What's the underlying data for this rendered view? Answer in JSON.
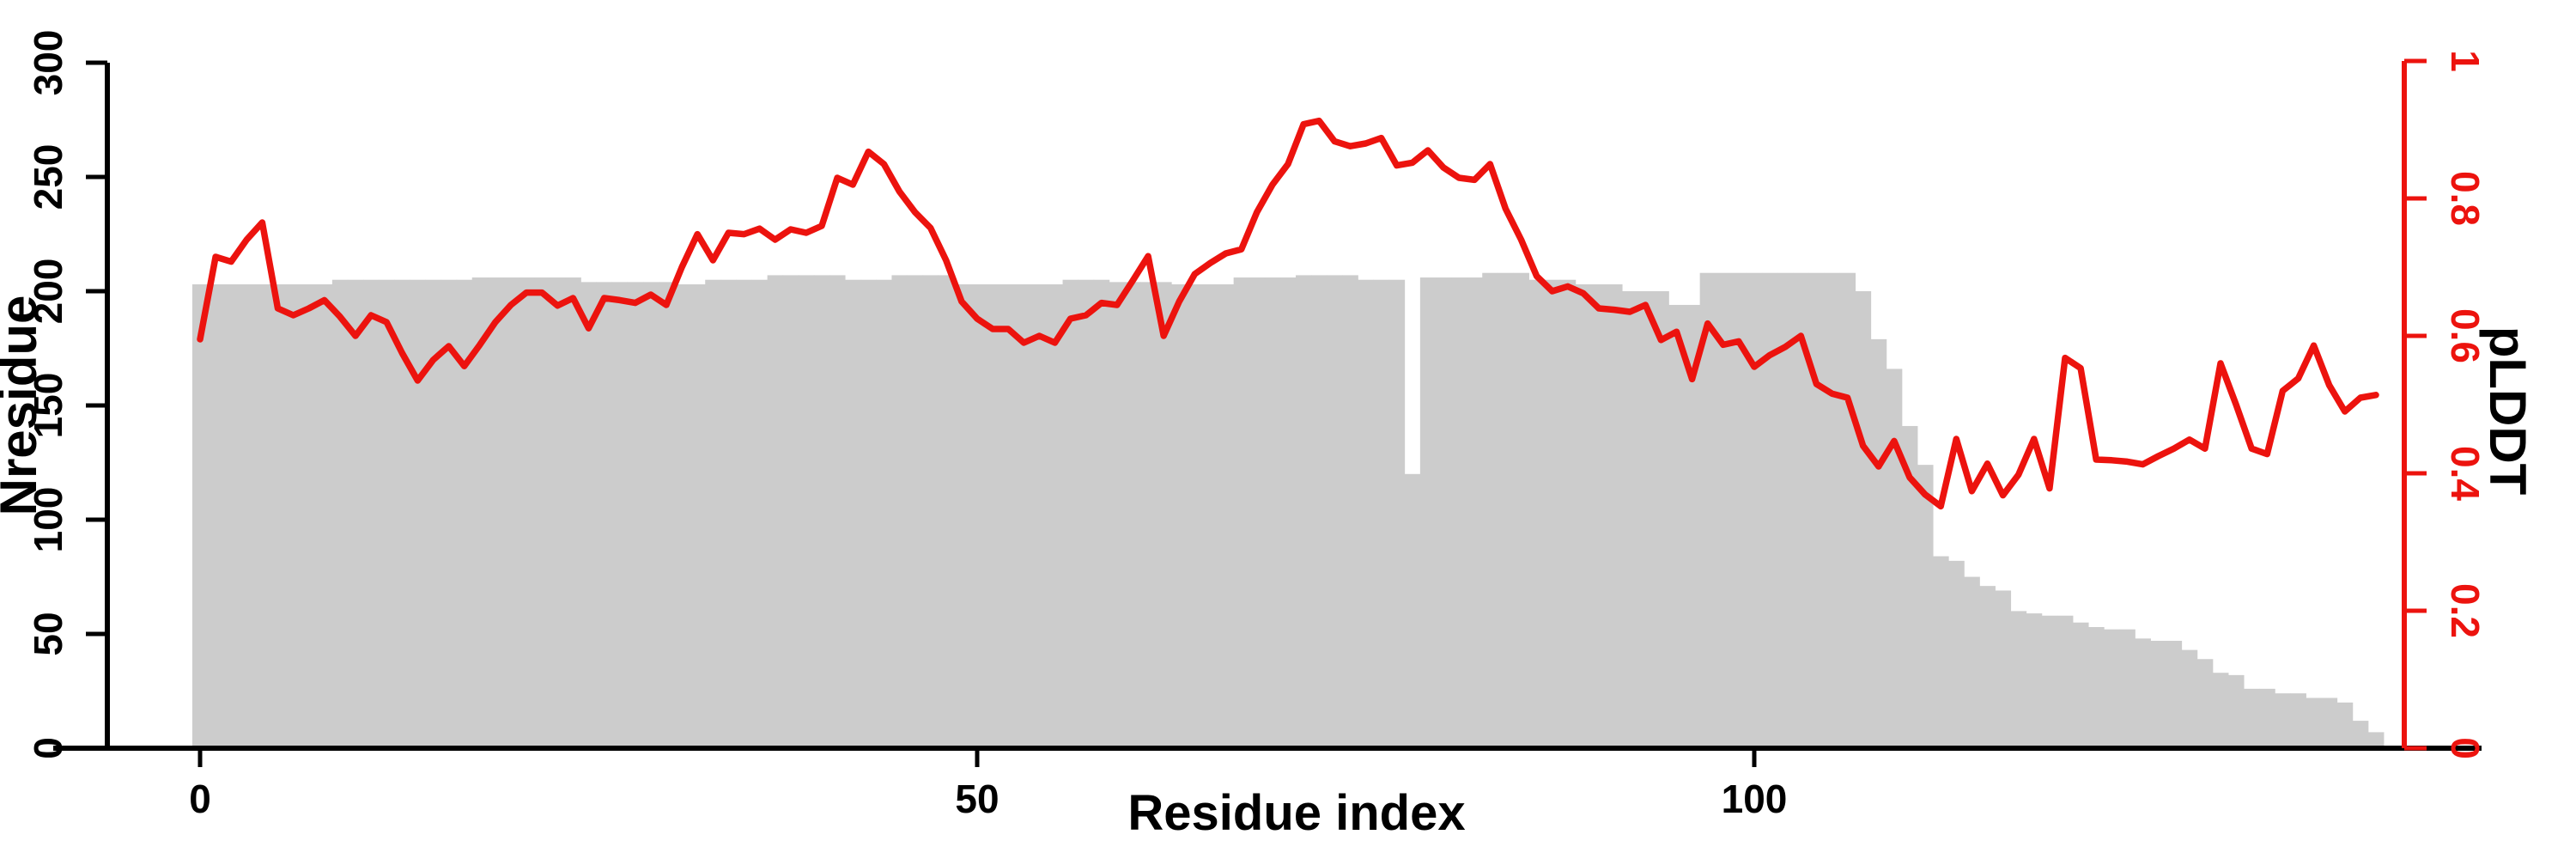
{
  "figure": {
    "xlabel": "Residue index",
    "x_axis": {
      "tick_labels": [
        "0",
        "50",
        "100"
      ],
      "tick_values": [
        0,
        50,
        100
      ]
    },
    "left_axis": {
      "label": "Nresidue",
      "tick_labels": [
        "0",
        "50",
        "100",
        "150",
        "200",
        "250",
        "300"
      ],
      "tick_values": [
        0,
        50,
        100,
        150,
        200,
        250,
        300
      ],
      "range": [
        0,
        300
      ],
      "color": "#000000"
    },
    "right_axis": {
      "label": "pLDDT",
      "tick_labels": [
        "0",
        "0.2",
        "0.4",
        "0.6",
        "0.8",
        "1"
      ],
      "tick_values": [
        0,
        0.2,
        0.4,
        0.6,
        0.8,
        1
      ],
      "range": [
        0,
        1
      ],
      "color": "#ec130e"
    }
  },
  "chart_data": {
    "type": "bar+line",
    "title": "",
    "xlabel": "Residue index",
    "ylabel_left": "Nresidue",
    "ylabel_right": "pLDDT",
    "x_start": 0,
    "x_step": 1,
    "xlim": [
      0,
      140
    ],
    "ylim_left": [
      0,
      300
    ],
    "ylim_right": [
      0,
      1
    ],
    "grid": false,
    "legend_position": "none",
    "bar_color": "#cccccc",
    "line_color": "#ec130e",
    "series": [
      {
        "name": "Nresidue",
        "type": "bar",
        "axis": "left",
        "color": "#cccccc",
        "values": [
          203,
          203,
          203,
          203,
          203,
          203,
          203,
          203,
          203,
          205,
          205,
          205,
          205,
          205,
          205,
          205,
          205,
          205,
          206,
          206,
          206,
          206,
          206,
          206,
          206,
          204,
          204,
          204,
          204,
          204,
          204,
          203,
          203,
          205,
          205,
          205,
          205,
          207,
          207,
          207,
          207,
          207,
          205,
          205,
          205,
          207,
          207,
          207,
          207,
          203,
          203,
          203,
          203,
          203,
          203,
          203,
          205,
          205,
          205,
          204,
          204,
          204,
          204,
          203,
          203,
          203,
          203,
          206,
          206,
          206,
          206,
          207,
          207,
          207,
          207,
          205,
          205,
          205,
          120,
          206,
          206,
          206,
          206,
          208,
          208,
          208,
          205,
          205,
          205,
          203,
          203,
          203,
          200,
          200,
          200,
          194,
          194,
          208,
          208,
          208,
          208,
          208,
          208,
          208,
          208,
          208,
          208,
          200,
          179,
          166,
          141,
          124,
          84,
          82,
          75,
          71,
          69,
          60,
          59,
          58,
          58,
          55,
          53,
          52,
          52,
          48,
          47,
          47,
          43,
          39,
          33,
          32,
          26,
          26,
          24,
          24,
          22,
          22,
          20,
          12,
          7
        ]
      },
      {
        "name": "pLDDT",
        "type": "line",
        "axis": "right",
        "color": "#ec130e",
        "values": [
          0.595,
          0.715,
          0.708,
          0.74,
          0.765,
          0.64,
          0.63,
          0.64,
          0.652,
          0.628,
          0.6,
          0.63,
          0.62,
          0.575,
          0.535,
          0.565,
          0.585,
          0.556,
          0.587,
          0.62,
          0.645,
          0.663,
          0.663,
          0.644,
          0.655,
          0.611,
          0.655,
          0.652,
          0.648,
          0.66,
          0.645,
          0.7,
          0.748,
          0.71,
          0.75,
          0.748,
          0.756,
          0.74,
          0.755,
          0.75,
          0.76,
          0.83,
          0.82,
          0.868,
          0.85,
          0.81,
          0.78,
          0.757,
          0.71,
          0.65,
          0.625,
          0.61,
          0.61,
          0.59,
          0.6,
          0.59,
          0.625,
          0.63,
          0.648,
          0.645,
          0.68,
          0.716,
          0.6,
          0.65,
          0.69,
          0.706,
          0.72,
          0.726,
          0.78,
          0.82,
          0.85,
          0.908,
          0.913,
          0.883,
          0.876,
          0.88,
          0.888,
          0.848,
          0.852,
          0.87,
          0.845,
          0.83,
          0.827,
          0.85,
          0.785,
          0.74,
          0.687,
          0.665,
          0.672,
          0.662,
          0.64,
          0.638,
          0.635,
          0.645,
          0.594,
          0.606,
          0.537,
          0.618,
          0.587,
          0.592,
          0.555,
          0.572,
          0.584,
          0.6,
          0.53,
          0.516,
          0.51,
          0.44,
          0.41,
          0.447,
          0.394,
          0.369,
          0.352,
          0.45,
          0.374,
          0.414,
          0.368,
          0.398,
          0.45,
          0.378,
          0.568,
          0.553,
          0.42,
          0.419,
          0.417,
          0.413,
          0.425,
          0.436,
          0.449,
          0.436,
          0.56,
          0.5,
          0.436,
          0.428,
          0.52,
          0.538,
          0.586,
          0.528,
          0.49,
          0.51,
          0.514
        ]
      }
    ]
  }
}
